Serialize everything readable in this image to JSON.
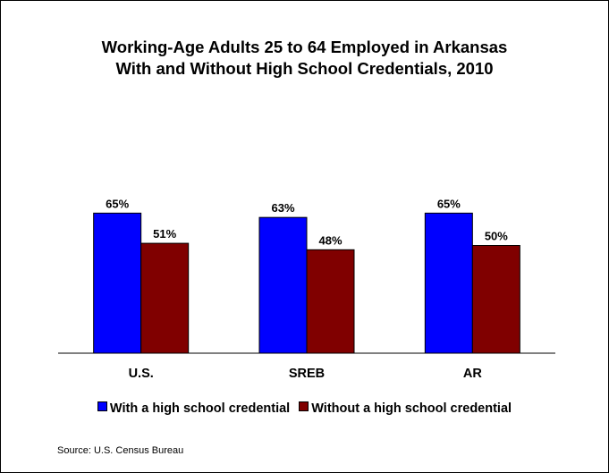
{
  "chart_data": {
    "type": "bar",
    "title_lines": [
      "Working-Age Adults 25 to 64 Employed in Arkansas",
      "With and Without High School Credentials, 2010"
    ],
    "categories": [
      "U.S.",
      "SREB",
      "AR"
    ],
    "series": [
      {
        "name": "With a high school credential",
        "values": [
          65,
          63,
          65
        ],
        "labels": [
          "65%",
          "63%",
          "65%"
        ],
        "color": "#0000FF"
      },
      {
        "name": "Without a high school credential",
        "values": [
          51,
          48,
          50
        ],
        "labels": [
          "51%",
          "48%",
          "50%"
        ],
        "color": "#800000"
      }
    ],
    "ylim": [
      0,
      100
    ],
    "grid": false,
    "legend_position": "bottom"
  },
  "source": "Source: U.S. Census Bureau"
}
